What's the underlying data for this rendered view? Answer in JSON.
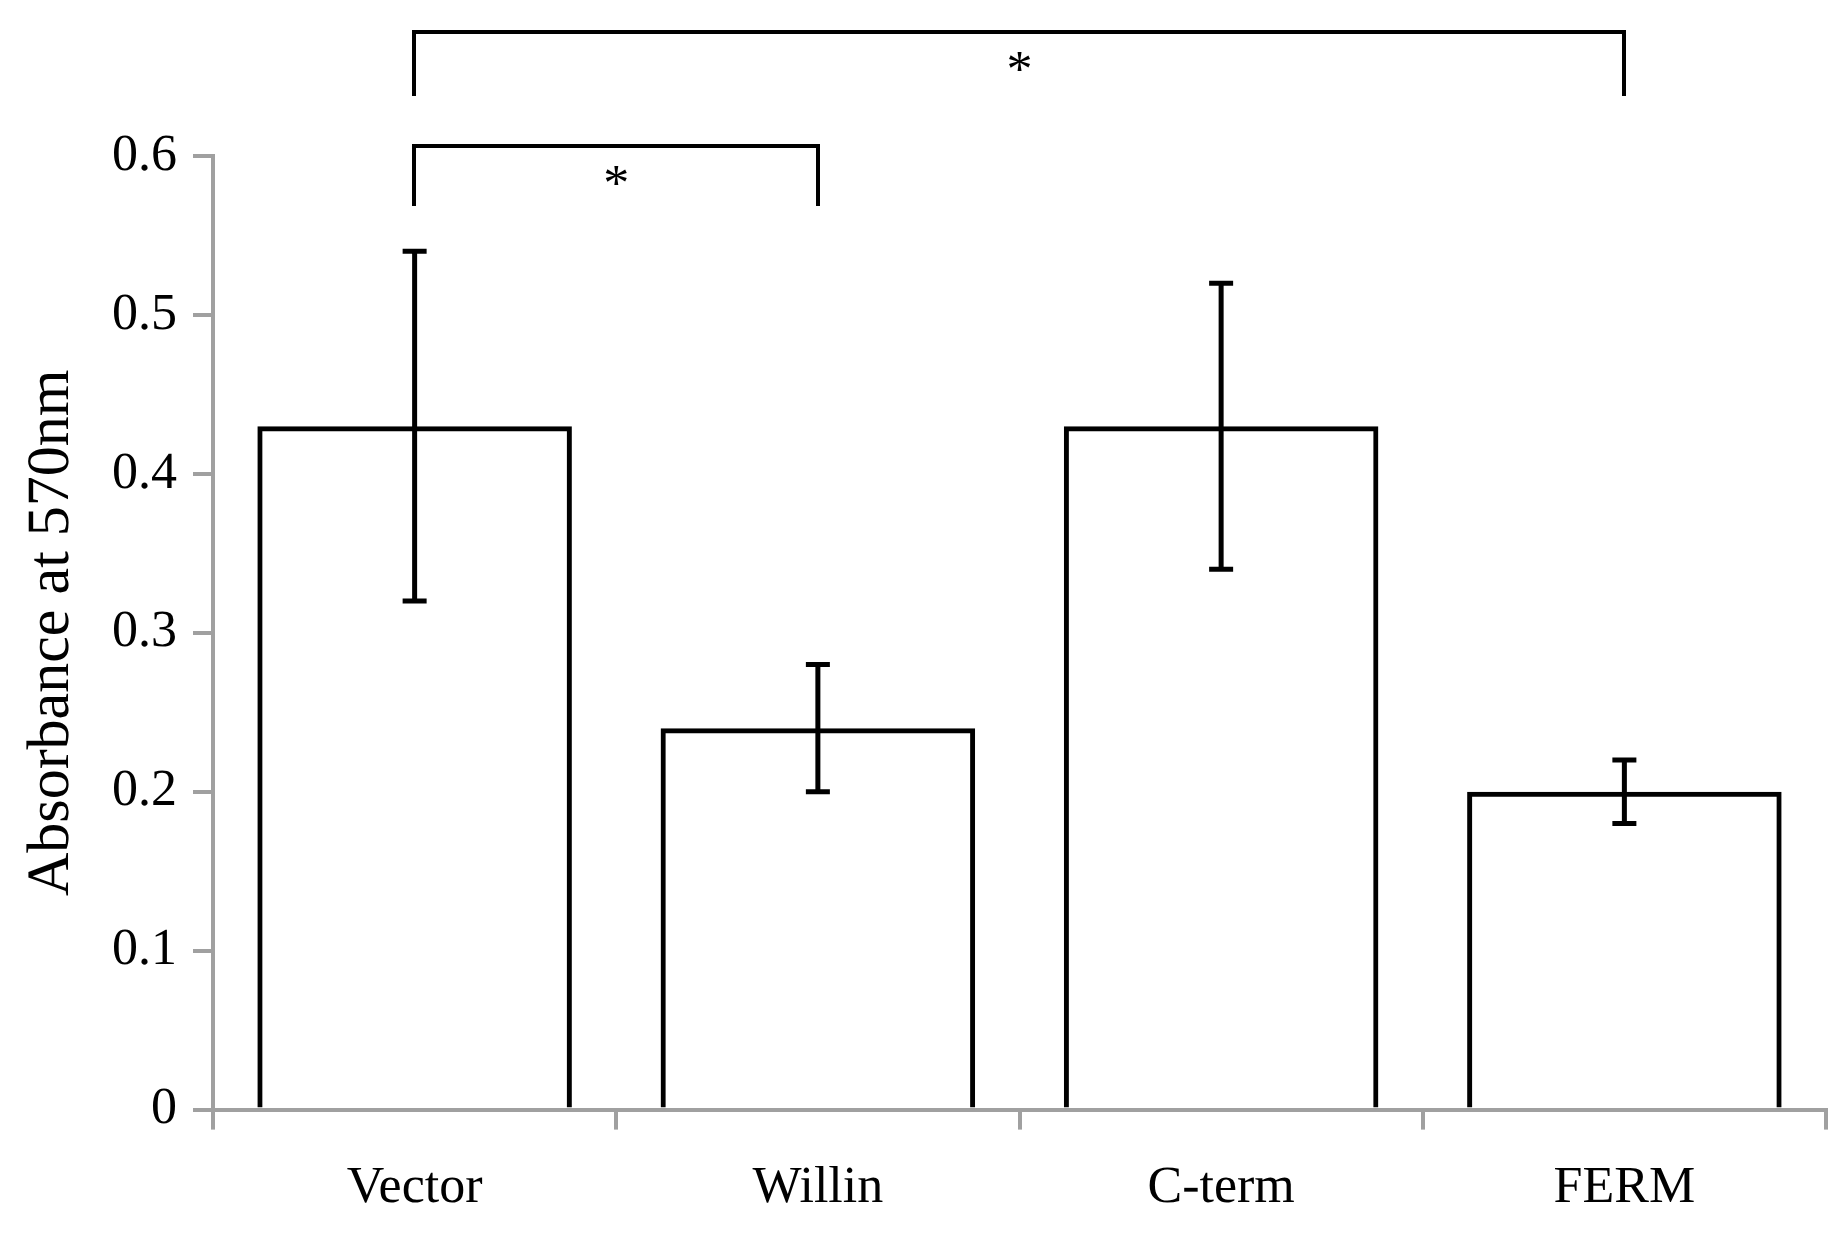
{
  "chart_data": {
    "type": "bar",
    "categories": [
      "Vector",
      "Willin",
      "C-term",
      "FERM"
    ],
    "series": [
      {
        "color": "#000000",
        "values": [
          0.43,
          0.24,
          0.43,
          0.2
        ],
        "errors": [
          0.11,
          0.04,
          0.09,
          0.02
        ]
      }
    ],
    "ylabel": "Absorbance at 570nm",
    "ylim": [
      0,
      0.6
    ],
    "yticks": [
      0,
      0.1,
      0.2,
      0.3,
      0.4,
      0.5,
      0.6
    ],
    "grid": false,
    "legend": false,
    "annotations": [
      "*",
      "*"
    ]
  }
}
